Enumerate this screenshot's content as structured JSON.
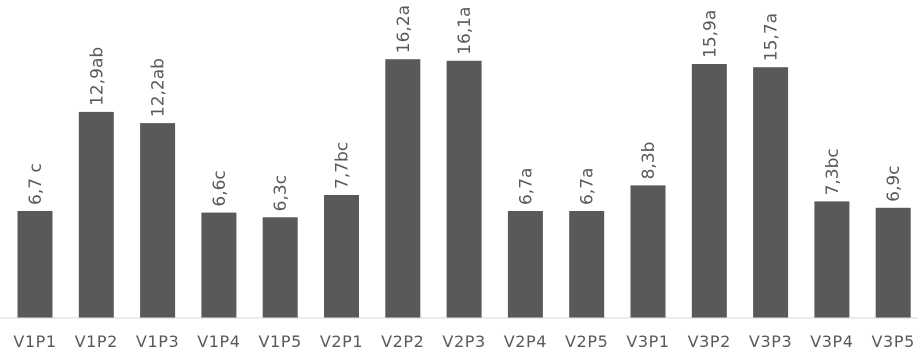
{
  "chart_data": {
    "type": "bar",
    "categories": [
      "V1P1",
      "V1P2",
      "V1P3",
      "V1P4",
      "V1P5",
      "V2P1",
      "V2P2",
      "V2P3",
      "V2P4",
      "V2P5",
      "V3P1",
      "V3P2",
      "V3P3",
      "V3P4",
      "V3P5"
    ],
    "values": [
      6.7,
      12.9,
      12.2,
      6.6,
      6.3,
      7.7,
      16.2,
      16.1,
      6.7,
      6.7,
      8.3,
      15.9,
      15.7,
      7.3,
      6.9
    ],
    "data_labels": [
      "6,7 c",
      "12,9ab",
      "12,2ab",
      "6,6c",
      "6,3c",
      "7,7bc",
      "16,2a",
      "16,1a",
      "6,7a",
      "6,7a",
      "8,3b",
      "15,9a",
      "15,7a",
      "7,3bc",
      "6,9c"
    ],
    "ylim": [
      0,
      17.4
    ],
    "grid": false,
    "legend": false,
    "colors": {
      "bar": "#595959",
      "label_text": "#595959",
      "axis_line": "#d9d9d9"
    }
  }
}
